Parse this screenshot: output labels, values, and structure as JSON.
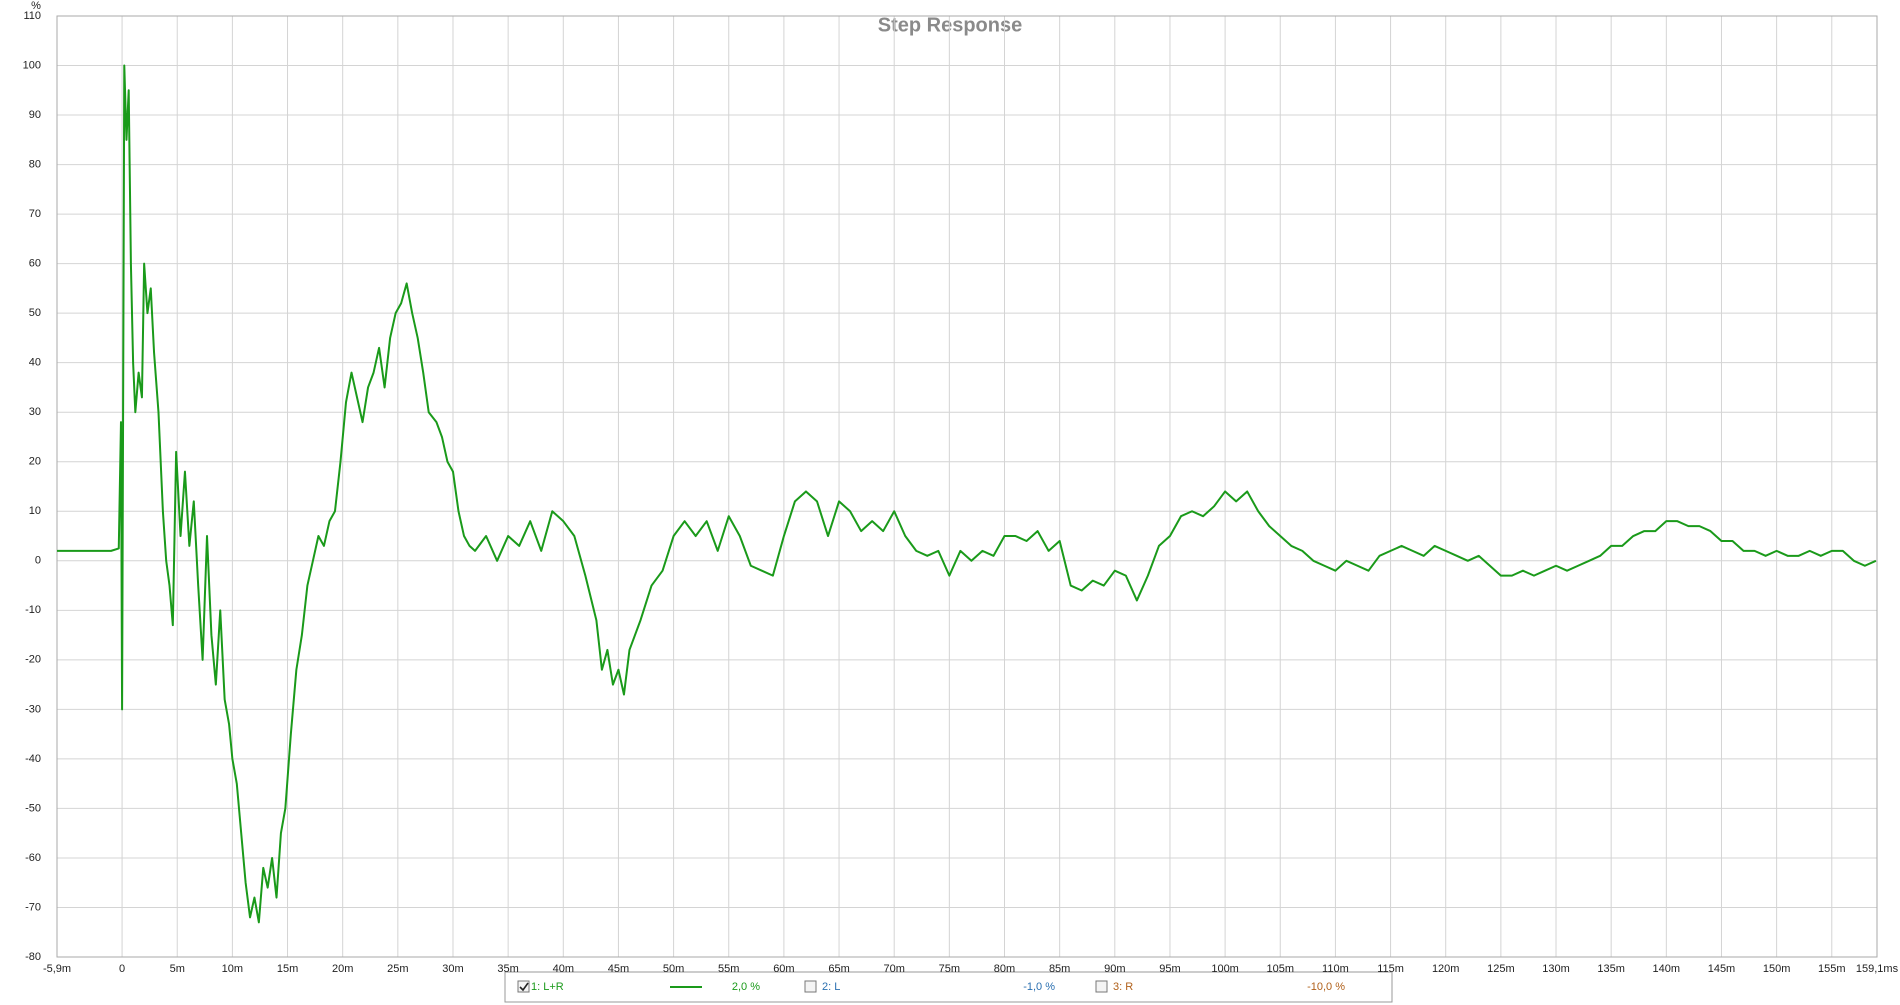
{
  "chart_data": {
    "type": "line",
    "title": "Step Response",
    "y_label": "%",
    "xlim": [
      -5.9,
      159.1
    ],
    "ylim": [
      -80,
      110
    ],
    "xticks": [
      {
        "value": -5.9,
        "label": "-5,9m"
      },
      0,
      {
        "value": 5,
        "label": "5m"
      },
      {
        "value": 10,
        "label": "10m"
      },
      {
        "value": 15,
        "label": "15m"
      },
      {
        "value": 20,
        "label": "20m"
      },
      {
        "value": 25,
        "label": "25m"
      },
      {
        "value": 30,
        "label": "30m"
      },
      {
        "value": 35,
        "label": "35m"
      },
      {
        "value": 40,
        "label": "40m"
      },
      {
        "value": 45,
        "label": "45m"
      },
      {
        "value": 50,
        "label": "50m"
      },
      {
        "value": 55,
        "label": "55m"
      },
      {
        "value": 60,
        "label": "60m"
      },
      {
        "value": 65,
        "label": "65m"
      },
      {
        "value": 70,
        "label": "70m"
      },
      {
        "value": 75,
        "label": "75m"
      },
      {
        "value": 80,
        "label": "80m"
      },
      {
        "value": 85,
        "label": "85m"
      },
      {
        "value": 90,
        "label": "90m"
      },
      {
        "value": 95,
        "label": "95m"
      },
      {
        "value": 100,
        "label": "100m"
      },
      {
        "value": 105,
        "label": "105m"
      },
      {
        "value": 110,
        "label": "110m"
      },
      {
        "value": 115,
        "label": "115m"
      },
      {
        "value": 120,
        "label": "120m"
      },
      {
        "value": 125,
        "label": "125m"
      },
      {
        "value": 130,
        "label": "130m"
      },
      {
        "value": 135,
        "label": "135m"
      },
      {
        "value": 140,
        "label": "140m"
      },
      {
        "value": 145,
        "label": "145m"
      },
      {
        "value": 150,
        "label": "150m"
      },
      {
        "value": 155,
        "label": "155m"
      },
      {
        "value": 159.1,
        "label": "159,1ms"
      }
    ],
    "yticks": [
      -80,
      -70,
      -60,
      -50,
      -40,
      -30,
      -20,
      -10,
      0,
      10,
      20,
      30,
      40,
      50,
      60,
      70,
      80,
      90,
      100,
      110
    ],
    "grid": true,
    "x": [
      -5.9,
      -1,
      -0.3,
      -0.1,
      0,
      0.2,
      0.4,
      0.6,
      0.8,
      1.0,
      1.2,
      1.5,
      1.8,
      2.0,
      2.3,
      2.6,
      2.9,
      3.3,
      3.7,
      4.0,
      4.3,
      4.6,
      4.9,
      5.3,
      5.7,
      6.1,
      6.5,
      6.9,
      7.3,
      7.7,
      8.1,
      8.5,
      8.9,
      9.3,
      9.7,
      10.0,
      10.4,
      10.8,
      11.2,
      11.6,
      12.0,
      12.4,
      12.8,
      13.2,
      13.6,
      14.0,
      14.4,
      14.8,
      15.3,
      15.8,
      16.3,
      16.8,
      17.3,
      17.8,
      18.3,
      18.8,
      19.3,
      19.8,
      20.3,
      20.8,
      21.3,
      21.8,
      22.3,
      22.8,
      23.3,
      23.8,
      24.3,
      24.8,
      25.3,
      25.8,
      26.3,
      26.8,
      27.3,
      27.8,
      28.5,
      29.0,
      29.5,
      30.0,
      30.5,
      31.0,
      31.5,
      32,
      33,
      34,
      35,
      36,
      37,
      38,
      39,
      40,
      41,
      42,
      43,
      43.5,
      44,
      44.5,
      45,
      45.5,
      46,
      47,
      48,
      49,
      50,
      51,
      52,
      53,
      54,
      55,
      56,
      57,
      58,
      59,
      60,
      61,
      62,
      63,
      64,
      65,
      66,
      67,
      68,
      69,
      70,
      71,
      72,
      73,
      74,
      75,
      76,
      77,
      78,
      79,
      80,
      81,
      82,
      83,
      84,
      85,
      86,
      87,
      88,
      89,
      90,
      91,
      92,
      93,
      94,
      95,
      96,
      97,
      98,
      99,
      100,
      101,
      102,
      103,
      104,
      105,
      106,
      107,
      108,
      109,
      110,
      111,
      112,
      113,
      114,
      115,
      116,
      117,
      118,
      119,
      120,
      121,
      122,
      123,
      124,
      125,
      126,
      127,
      128,
      129,
      130,
      131,
      132,
      133,
      134,
      135,
      136,
      137,
      138,
      139,
      140,
      141,
      142,
      143,
      144,
      145,
      146,
      147,
      148,
      149,
      150,
      151,
      152,
      153,
      154,
      155,
      156,
      157,
      158,
      159
    ],
    "series": [
      {
        "name": "1: L+R",
        "color": "#1a9a1a",
        "values": [
          2,
          2,
          2.5,
          28,
          -30,
          100,
          85,
          95,
          60,
          40,
          30,
          38,
          33,
          60,
          50,
          55,
          42,
          30,
          10,
          0,
          -5,
          -13,
          22,
          5,
          18,
          3,
          12,
          -5,
          -20,
          5,
          -15,
          -25,
          -10,
          -28,
          -33,
          -40,
          -45,
          -55,
          -65,
          -72,
          -68,
          -73,
          -62,
          -66,
          -60,
          -68,
          -55,
          -50,
          -35,
          -22,
          -15,
          -5,
          0,
          5,
          3,
          8,
          10,
          20,
          32,
          38,
          33,
          28,
          35,
          38,
          43,
          35,
          45,
          50,
          52,
          56,
          50,
          45,
          38,
          30,
          28,
          25,
          20,
          18,
          10,
          5,
          3,
          2,
          5,
          0,
          5,
          3,
          8,
          2,
          10,
          8,
          5,
          -3,
          -12,
          -22,
          -18,
          -25,
          -22,
          -27,
          -18,
          -12,
          -5,
          -2,
          5,
          8,
          5,
          8,
          2,
          9,
          5,
          -1,
          -2,
          -3,
          5,
          12,
          14,
          12,
          5,
          12,
          10,
          6,
          8,
          6,
          10,
          5,
          2,
          1,
          2,
          -3,
          2,
          0,
          2,
          1,
          5,
          5,
          4,
          6,
          2,
          4,
          -5,
          -6,
          -4,
          -5,
          -2,
          -3,
          -8,
          -3,
          3,
          5,
          9,
          10,
          9,
          11,
          14,
          12,
          14,
          10,
          7,
          5,
          3,
          2,
          0,
          -1,
          -2,
          0,
          -1,
          -2,
          1,
          2,
          3,
          2,
          1,
          3,
          2,
          1,
          0,
          1,
          -1,
          -3,
          -3,
          -2,
          -3,
          -2,
          -1,
          -2,
          -1,
          0,
          1,
          3,
          3,
          5,
          6,
          6,
          8,
          8,
          7,
          7,
          6,
          4,
          4,
          2,
          2,
          1,
          2,
          1,
          1,
          2,
          1,
          2,
          2,
          0,
          -1,
          0
        ]
      }
    ],
    "legend": [
      {
        "label": "1: L+R",
        "readout": "2,0 %",
        "color": "#1a9a1a",
        "checked": true
      },
      {
        "label": "2: L",
        "readout": "-1,0 %",
        "color": "#2a6fb0",
        "checked": false
      },
      {
        "label": "3: R",
        "readout": "-10,0 %",
        "color": "#b0601a",
        "checked": false
      }
    ]
  }
}
